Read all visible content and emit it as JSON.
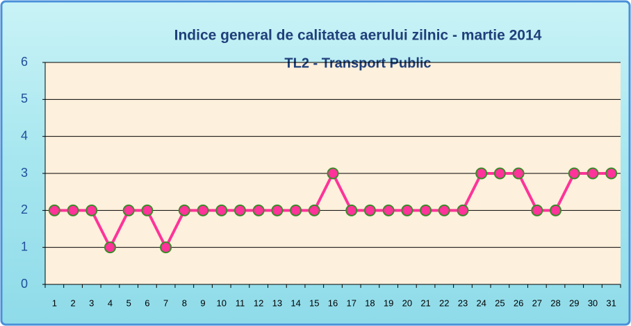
{
  "chart_data": {
    "type": "line",
    "title": "Indice general de calitatea aerului zilnic - martie 2014",
    "subtitle": "TL2 - Transport Public",
    "categories": [
      "1",
      "2",
      "3",
      "4",
      "5",
      "6",
      "7",
      "8",
      "9",
      "10",
      "11",
      "12",
      "13",
      "14",
      "15",
      "16",
      "17",
      "18",
      "19",
      "20",
      "21",
      "22",
      "23",
      "24",
      "25",
      "26",
      "27",
      "28",
      "29",
      "30",
      "31"
    ],
    "series": [
      {
        "color": "#ff3399",
        "values": [
          2,
          2,
          2,
          1,
          2,
          2,
          1,
          2,
          2,
          2,
          2,
          2,
          2,
          2,
          2,
          3,
          2,
          2,
          2,
          2,
          2,
          2,
          2,
          3,
          3,
          3,
          2,
          2,
          3,
          3,
          3
        ]
      }
    ],
    "ylim": [
      0,
      6
    ],
    "yticks": [
      0,
      1,
      2,
      3,
      4,
      5,
      6
    ],
    "grid": true
  }
}
